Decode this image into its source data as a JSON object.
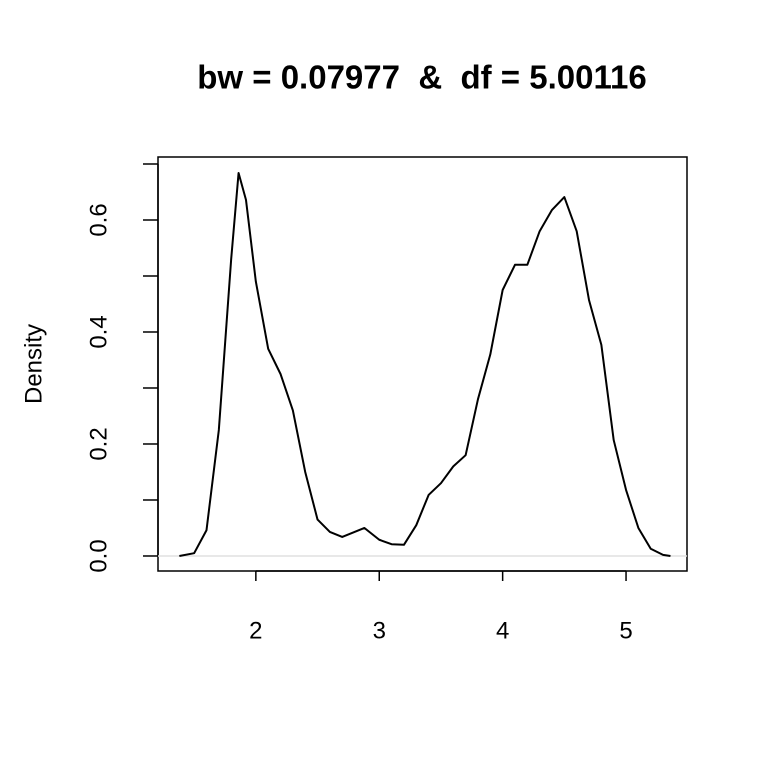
{
  "chart_data": {
    "type": "line",
    "title": "bw = 0.07977  &  df = 5.00116",
    "y_label": "Density",
    "color": "#000000",
    "hline": 0,
    "hline_color": "#e0e0e0",
    "x": [
      1.38,
      1.5,
      1.6,
      1.7,
      1.8,
      1.86,
      1.92,
      2.0,
      2.1,
      2.2,
      2.3,
      2.4,
      2.5,
      2.6,
      2.7,
      2.8,
      2.88,
      3.0,
      3.1,
      3.2,
      3.3,
      3.4,
      3.5,
      3.6,
      3.7,
      3.8,
      3.9,
      4.0,
      4.1,
      4.2,
      4.3,
      4.4,
      4.5,
      4.6,
      4.7,
      4.8,
      4.9,
      5.0,
      5.1,
      5.2,
      5.3,
      5.36
    ],
    "values": [
      0.0,
      0.005,
      0.046,
      0.225,
      0.53,
      0.684,
      0.636,
      0.49,
      0.37,
      0.325,
      0.26,
      0.15,
      0.065,
      0.043,
      0.034,
      0.043,
      0.05,
      0.029,
      0.021,
      0.02,
      0.055,
      0.109,
      0.13,
      0.16,
      0.18,
      0.28,
      0.36,
      0.475,
      0.52,
      0.52,
      0.58,
      0.618,
      0.641,
      0.58,
      0.457,
      0.377,
      0.207,
      0.118,
      0.05,
      0.013,
      0.002,
      0.0
    ],
    "xlim": [
      1.207,
      5.494
    ],
    "xticks": [
      2,
      3,
      4,
      5
    ],
    "ylim": [
      -0.0268,
      0.7125
    ],
    "yticks": [
      {
        "value": 0,
        "label": "0.0"
      },
      {
        "value": 0.1,
        "label": null
      },
      {
        "value": 0.2,
        "label": "0.2"
      },
      {
        "value": 0.3,
        "label": null
      },
      {
        "value": 0.4,
        "label": "0.4"
      },
      {
        "value": 0.5,
        "label": null
      },
      {
        "value": 0.6,
        "label": "0.6"
      },
      {
        "value": 0.7,
        "label": null
      }
    ]
  }
}
